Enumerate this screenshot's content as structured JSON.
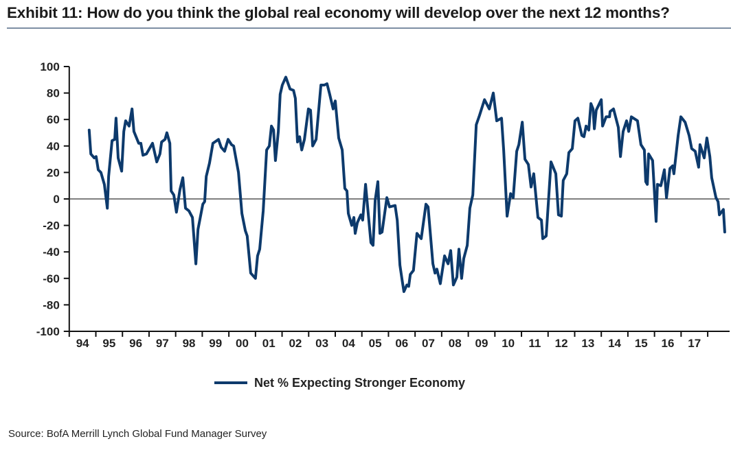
{
  "title": "Exhibit 11: How do you think the global real economy will develop over the next 12 months?",
  "source": "Source: BofA Merrill Lynch Global Fund Manager Survey",
  "colors": {
    "line": "#0d3a6c",
    "axis": "#111111",
    "zero_line": "#333333"
  },
  "chart_data": {
    "type": "line",
    "title": "Exhibit 11: How do you think the global real economy will develop over the next 12 months?",
    "xlabel": "",
    "ylabel": "",
    "ylim": [
      -100,
      100
    ],
    "xlim": [
      1994,
      2018.8
    ],
    "yticks": [
      "100",
      "80",
      "60",
      "40",
      "20",
      "0",
      "-20",
      "-40",
      "-60",
      "-80",
      "-100"
    ],
    "xticks": [
      "94",
      "95",
      "96",
      "97",
      "98",
      "99",
      "00",
      "01",
      "02",
      "03",
      "04",
      "05",
      "06",
      "07",
      "08",
      "09",
      "10",
      "11",
      "12",
      "13",
      "14",
      "15",
      "16",
      "17"
    ],
    "legend": {
      "position": "bottom-center",
      "entries": [
        "Net % Expecting Stronger Economy"
      ]
    },
    "grid": false,
    "series": [
      {
        "name": "Net % Expecting Stronger Economy",
        "x": [
          1994.75,
          1994.81,
          1994.94,
          1995.01,
          1995.09,
          1995.19,
          1995.32,
          1995.43,
          1995.48,
          1995.61,
          1995.71,
          1995.76,
          1995.84,
          1995.97,
          1996.05,
          1996.12,
          1996.25,
          1996.36,
          1996.43,
          1996.61,
          1996.69,
          1996.77,
          1996.9,
          1997.13,
          1997.29,
          1997.41,
          1997.47,
          1997.6,
          1997.67,
          1997.78,
          1997.83,
          1997.93,
          1998.03,
          1998.16,
          1998.27,
          1998.37,
          1998.5,
          1998.63,
          1998.76,
          1998.84,
          1999.02,
          1999.09,
          1999.15,
          1999.27,
          1999.4,
          1999.61,
          1999.71,
          1999.84,
          1999.97,
          2000.1,
          2000.18,
          2000.36,
          2000.49,
          2000.62,
          2000.69,
          2000.82,
          2001.0,
          2001.08,
          2001.16,
          2001.29,
          2001.42,
          2001.52,
          2001.6,
          2001.68,
          2001.75,
          2001.86,
          2001.93,
          2002.01,
          2002.14,
          2002.3,
          2002.43,
          2002.5,
          2002.58,
          2002.66,
          2002.74,
          2002.84,
          2002.99,
          2003.07,
          2003.15,
          2003.28,
          2003.46,
          2003.59,
          2003.69,
          2003.79,
          2003.92,
          2004.0,
          2004.13,
          2004.26,
          2004.36,
          2004.44,
          2004.49,
          2004.62,
          2004.7,
          2004.75,
          2004.83,
          2004.96,
          2005.03,
          2005.14,
          2005.27,
          2005.34,
          2005.42,
          2005.5,
          2005.6,
          2005.68,
          2005.76,
          2005.94,
          2006.04,
          2006.25,
          2006.33,
          2006.43,
          2006.51,
          2006.58,
          2006.69,
          2006.76,
          2006.82,
          2006.94,
          2007.07,
          2007.23,
          2007.41,
          2007.49,
          2007.67,
          2007.75,
          2007.82,
          2007.95,
          2008.11,
          2008.24,
          2008.34,
          2008.44,
          2008.57,
          2008.65,
          2008.75,
          2008.83,
          2008.96,
          2009.06,
          2009.17,
          2009.3,
          2009.42,
          2009.61,
          2009.79,
          2009.94,
          2010.07,
          2010.25,
          2010.33,
          2010.46,
          2010.59,
          2010.69,
          2010.82,
          2010.9,
          2011.03,
          2011.13,
          2011.26,
          2011.36,
          2011.46,
          2011.62,
          2011.75,
          2011.8,
          2011.93,
          2012.11,
          2012.29,
          2012.39,
          2012.5,
          2012.57,
          2012.7,
          2012.78,
          2012.91,
          2013.01,
          2013.12,
          2013.27,
          2013.35,
          2013.43,
          2013.53,
          2013.61,
          2013.69,
          2013.74,
          2013.81,
          2014.0,
          2014.05,
          2014.18,
          2014.31,
          2014.33,
          2014.46,
          2014.64,
          2014.72,
          2014.82,
          2014.95,
          2015.03,
          2015.13,
          2015.36,
          2015.49,
          2015.62,
          2015.67,
          2015.73,
          2015.78,
          2015.93,
          2016.06,
          2016.11,
          2016.24,
          2016.37,
          2016.45,
          2016.58,
          2016.68,
          2016.73,
          2016.89,
          2016.99,
          2017.15,
          2017.3,
          2017.4,
          2017.53,
          2017.66,
          2017.71,
          2017.87,
          2017.97,
          2018.08,
          2018.15,
          2018.31,
          2018.39,
          2018.44,
          2018.59,
          2018.64
        ],
        "y": [
          52,
          34,
          31,
          32,
          22,
          20,
          11,
          -7,
          17,
          44,
          45,
          61,
          31,
          21,
          51,
          59,
          55,
          68,
          51,
          42,
          42,
          33,
          34,
          42,
          28,
          34,
          43,
          45,
          50,
          42,
          6,
          3,
          -10,
          7,
          16,
          -7,
          -9,
          -14,
          -49,
          -23,
          -4,
          -2,
          17,
          27,
          42,
          45,
          39,
          36,
          45,
          41,
          40,
          20,
          -11,
          -24,
          -28,
          -56,
          -60,
          -43,
          -38,
          -9,
          37,
          40,
          55,
          52,
          29,
          51,
          79,
          86,
          92,
          83,
          82,
          76,
          43,
          47,
          37,
          45,
          68,
          67,
          40,
          45,
          86,
          86,
          87,
          79,
          68,
          74,
          46,
          37,
          8,
          6,
          -11,
          -20,
          -14,
          -26,
          -18,
          -12,
          -16,
          11,
          -18,
          -33,
          -35,
          -1,
          13,
          -26,
          -25,
          1,
          -6,
          -5,
          -16,
          -50,
          -61,
          -70,
          -65,
          -66,
          -57,
          -54,
          -26,
          -30,
          -4,
          -6,
          -49,
          -56,
          -53,
          -64,
          -43,
          -49,
          -39,
          -65,
          -59,
          -38,
          -60,
          -45,
          -35,
          -7,
          3,
          56,
          63,
          75,
          68,
          80,
          59,
          61,
          37,
          -13,
          4,
          1,
          36,
          41,
          58,
          30,
          26,
          9,
          19,
          -14,
          -16,
          -30,
          -28,
          28,
          19,
          -12,
          -13,
          14,
          19,
          35,
          38,
          59,
          61,
          48,
          47,
          55,
          52,
          72,
          68,
          53,
          67,
          75,
          55,
          62,
          62,
          66,
          68,
          54,
          32,
          51,
          59,
          51,
          62,
          59,
          41,
          37,
          13,
          11,
          34,
          29,
          -17,
          11,
          10,
          22,
          1,
          23,
          25,
          19,
          48,
          62,
          58,
          48,
          38,
          36,
          24,
          41,
          31,
          46,
          32,
          16,
          1,
          -2,
          -12,
          -8,
          -25
        ]
      }
    ]
  }
}
